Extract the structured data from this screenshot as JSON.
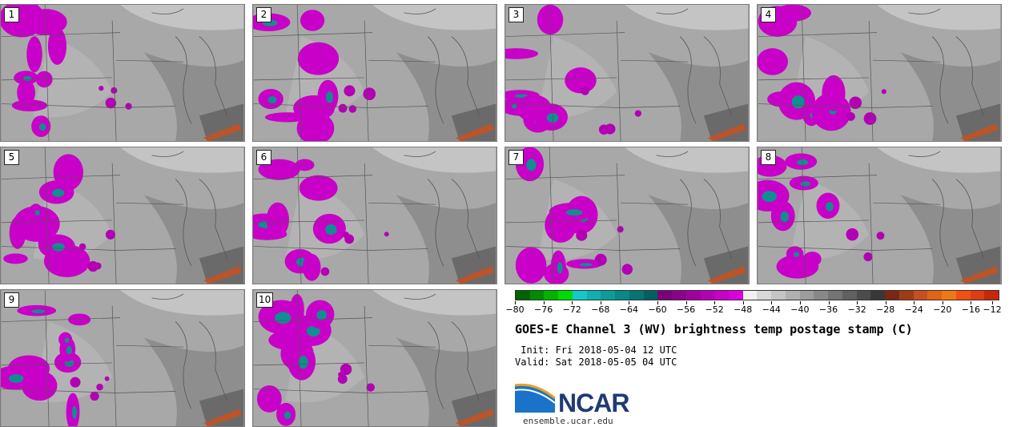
{
  "panels": [
    {
      "label": "1"
    },
    {
      "label": "2"
    },
    {
      "label": "3"
    },
    {
      "label": "4"
    },
    {
      "label": "5"
    },
    {
      "label": "6"
    },
    {
      "label": "7"
    },
    {
      "label": "8"
    },
    {
      "label": "9"
    },
    {
      "label": "10"
    }
  ],
  "colorbar": {
    "colors": [
      "#006400",
      "#008c00",
      "#00b400",
      "#00dc00",
      "#14c8c8",
      "#10b0b0",
      "#0c9c9c",
      "#088888",
      "#047474",
      "#006060",
      "#7a007a",
      "#8c008c",
      "#a000a0",
      "#b400b4",
      "#c800c8",
      "#dc00dc",
      "#f0f0f0",
      "#d8d8d8",
      "#c4c4c4",
      "#b0b0b0",
      "#9c9c9c",
      "#888888",
      "#747474",
      "#606060",
      "#4c4c4c",
      "#383838",
      "#7a2810",
      "#a03c14",
      "#c8501e",
      "#e06414",
      "#f07814",
      "#f05014",
      "#e03c14",
      "#c82808"
    ],
    "ticks": [
      "−80",
      "−76",
      "−72",
      "−68",
      "−64",
      "−60",
      "−56",
      "−52",
      "−48",
      "−44",
      "−40",
      "−36",
      "−32",
      "−28",
      "−24",
      "−20",
      "−16",
      "−12"
    ]
  },
  "title": "GOES-E Channel 3 (WV) brightness temp postage stamp (C)",
  "init": " Init: Fri 2018-05-04 12 UTC",
  "valid": "Valid: Sat 2018-05-05 04 UTC",
  "logo": {
    "text": "NCAR",
    "url": "ensemble.ucar.edu"
  }
}
